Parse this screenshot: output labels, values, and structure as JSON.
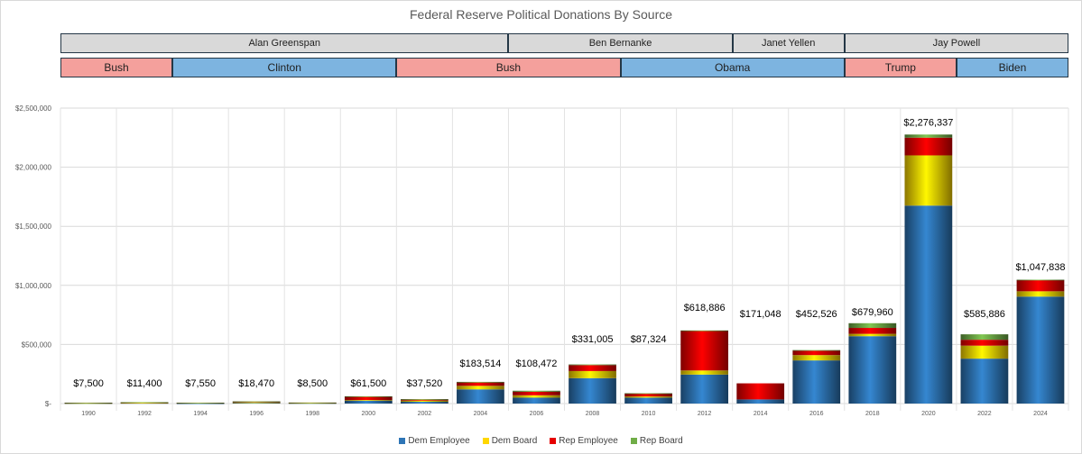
{
  "chart_data": {
    "type": "bar",
    "stacked": true,
    "title": "Federal Reserve Political Donations By Source",
    "categories": [
      "1990",
      "1992",
      "1994",
      "1996",
      "1998",
      "2000",
      "2002",
      "2004",
      "2006",
      "2008",
      "2010",
      "2012",
      "2014",
      "2016",
      "2018",
      "2020",
      "2022",
      "2024"
    ],
    "series": [
      {
        "name": "Dem Employee",
        "color": "#2e75b6",
        "values": [
          3500,
          5000,
          2000,
          8000,
          4000,
          25000,
          15000,
          120000,
          50000,
          215000,
          50000,
          245000,
          35000,
          365000,
          570000,
          1675000,
          380000,
          905000
        ]
      },
      {
        "name": "Dem Board",
        "color": "#ffd700",
        "values": [
          1000,
          1000,
          4000,
          2000,
          1500,
          5000,
          10000,
          30000,
          20000,
          60000,
          10000,
          35000,
          0,
          45000,
          20000,
          425000,
          110000,
          45000
        ]
      },
      {
        "name": "Rep Employee",
        "color": "#e60000",
        "values": [
          2000,
          4400,
          1050,
          7470,
          2500,
          27500,
          10000,
          28514,
          30000,
          50005,
          25000,
          335000,
          136048,
          37526,
          50000,
          150000,
          50000,
          95000
        ]
      },
      {
        "name": "Rep Board",
        "color": "#70ad47",
        "values": [
          1000,
          1000,
          500,
          1000,
          500,
          4000,
          2520,
          5000,
          8472,
          6000,
          2324,
          3886,
          0,
          5000,
          39960,
          26337,
          45886,
          2838
        ]
      }
    ],
    "totals": [
      "$7,500",
      "$11,400",
      "$7,550",
      "$18,470",
      "$8,500",
      "$61,500",
      "$37,520",
      "$183,514",
      "$108,472",
      "$331,005",
      "$87,324",
      "$618,886",
      "$171,048",
      "$452,526",
      "$679,960",
      "$2,276,337",
      "$585,886",
      "$1,047,838"
    ],
    "ylim": [
      0,
      2500000
    ],
    "yticks": [
      0,
      500000,
      1000000,
      1500000,
      2000000,
      2500000
    ],
    "ytick_labels": [
      "$-",
      "$500,000",
      "$1,000,000",
      "$1,500,000",
      "$2,000,000",
      "$2,500,000"
    ],
    "grid": true,
    "legend_position": "bottom"
  },
  "chair_band": [
    {
      "label": "Alan Greenspan",
      "from": "1990",
      "to": "2004"
    },
    {
      "label": "Ben Bernanke",
      "from": "2006",
      "to": "2012"
    },
    {
      "label": "Janet Yellen",
      "from": "2014",
      "to": "2016"
    },
    {
      "label": "Jay Powell",
      "from": "2018",
      "to": "2024"
    }
  ],
  "pres_band": [
    {
      "label": "Bush",
      "party": "Rep",
      "from": "1990",
      "to": "1992"
    },
    {
      "label": "Clinton",
      "party": "Dem",
      "from": "1994",
      "to": "2000"
    },
    {
      "label": "Bush",
      "party": "Rep",
      "from": "2002",
      "to": "2008"
    },
    {
      "label": "Obama",
      "party": "Dem",
      "from": "2010",
      "to": "2016"
    },
    {
      "label": "Trump",
      "party": "Rep",
      "from": "2018",
      "to": "2020"
    },
    {
      "label": "Biden",
      "party": "Dem",
      "from": "2022",
      "to": "2024"
    }
  ],
  "colors": {
    "chair_fill": "#d9d9d9",
    "rep_fill": "#f4a09c",
    "dem_fill": "#7db4e0"
  }
}
